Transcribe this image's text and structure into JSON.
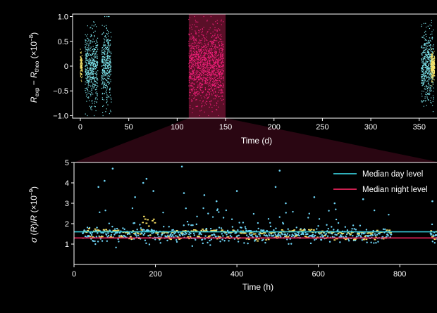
{
  "chart_data": [
    {
      "type": "scatter",
      "title": "",
      "xlabel": "Time (d)",
      "ylabel": "R_exp − R_theo (×10⁻⁸)",
      "ylabel_parts": {
        "a": "R",
        "a_sub": "exp",
        "minus": " − ",
        "b": "R",
        "b_sub": "theo",
        "unit_open": " (×10",
        "unit_exp": "−8",
        "unit_close": ")"
      },
      "xlim": [
        -8,
        372
      ],
      "ylim": [
        -1.05,
        1.05
      ],
      "xticks": [
        0,
        50,
        100,
        150,
        200,
        250,
        300,
        350
      ],
      "yticks": [
        -1.0,
        -0.5,
        0,
        0.5,
        1.0
      ],
      "xtick_labels": [
        "0",
        "50",
        "100",
        "150",
        "200",
        "250",
        "300",
        "350"
      ],
      "ytick_labels": [
        "−1.0",
        "−0.5",
        "0",
        "0.5",
        "1.0"
      ],
      "highlight_range": [
        112,
        150
      ],
      "highlight_color": "#5a0f28",
      "series": [
        {
          "color": "#7fe7ef",
          "spread": 0.35,
          "x_ranges": [
            [
              5,
              18
            ],
            [
              22,
              32
            ],
            [
              352,
              365
            ]
          ]
        },
        {
          "color": "#ee1f78",
          "spread": 0.35,
          "x_ranges": [
            [
              112,
              148
            ]
          ]
        },
        {
          "color": "#f7e36a",
          "spread": 0.12,
          "x_ranges": [
            [
              0,
              2
            ],
            [
              362,
              366
            ]
          ]
        }
      ]
    },
    {
      "type": "scatter",
      "title": "",
      "xlabel": "Time (h)",
      "ylabel": "σ (R)/R (×10⁻⁹)",
      "ylabel_parts": {
        "a": "σ",
        "b": " (",
        "c": "R",
        "d": ")/",
        "e": "R",
        "unit_open": " (×10",
        "unit_exp": "−9",
        "unit_close": ")"
      },
      "xlim": [
        0,
        900
      ],
      "ylim": [
        0,
        5
      ],
      "xticks": [
        0,
        200,
        400,
        600,
        800
      ],
      "yticks": [
        1,
        2,
        3,
        4,
        5
      ],
      "xtick_labels": [
        "0",
        "200",
        "400",
        "600",
        "800"
      ],
      "ytick_labels": [
        "1",
        "2",
        "3",
        "4",
        "5"
      ],
      "legend_position": "top-right",
      "series": [
        {
          "name": "Median day level",
          "kind": "hline",
          "y": 1.6,
          "color": "#37c8d6"
        },
        {
          "name": "Median night level",
          "kind": "hline",
          "y": 1.3,
          "color": "#e8245c"
        }
      ],
      "point_color": "#6ed4f5",
      "smooth_color": "#f4dd62",
      "data_gaps_h": [
        [
          0,
          20
        ],
        [
          780,
          875
        ]
      ],
      "outliers": [
        {
          "x": 60,
          "y": 3.8
        },
        {
          "x": 75,
          "y": 4.1
        },
        {
          "x": 95,
          "y": 4.7
        },
        {
          "x": 150,
          "y": 3.3
        },
        {
          "x": 170,
          "y": 4.0
        },
        {
          "x": 178,
          "y": 4.2
        },
        {
          "x": 195,
          "y": 3.6
        },
        {
          "x": 265,
          "y": 4.8
        },
        {
          "x": 270,
          "y": 3.5
        },
        {
          "x": 320,
          "y": 3.4
        },
        {
          "x": 350,
          "y": 3.1
        },
        {
          "x": 400,
          "y": 3.6
        },
        {
          "x": 495,
          "y": 3.8
        },
        {
          "x": 505,
          "y": 4.6
        },
        {
          "x": 520,
          "y": 3.0
        },
        {
          "x": 590,
          "y": 3.3
        },
        {
          "x": 640,
          "y": 3.0
        },
        {
          "x": 710,
          "y": 3.2
        },
        {
          "x": 880,
          "y": 3.1
        }
      ]
    }
  ]
}
